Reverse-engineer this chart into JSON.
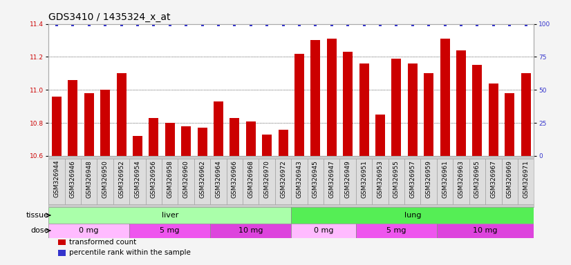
{
  "title": "GDS3410 / 1435324_x_at",
  "samples": [
    "GSM326944",
    "GSM326946",
    "GSM326948",
    "GSM326950",
    "GSM326952",
    "GSM326954",
    "GSM326956",
    "GSM326958",
    "GSM326960",
    "GSM326962",
    "GSM326964",
    "GSM326966",
    "GSM326968",
    "GSM326970",
    "GSM326972",
    "GSM326943",
    "GSM326945",
    "GSM326947",
    "GSM326949",
    "GSM326951",
    "GSM326953",
    "GSM326955",
    "GSM326957",
    "GSM326959",
    "GSM326961",
    "GSM326963",
    "GSM326965",
    "GSM326967",
    "GSM326969",
    "GSM326971"
  ],
  "values": [
    10.96,
    11.06,
    10.98,
    11.0,
    11.1,
    10.72,
    10.83,
    10.8,
    10.78,
    10.77,
    10.93,
    10.83,
    10.81,
    10.73,
    10.76,
    11.22,
    11.3,
    11.31,
    11.23,
    11.16,
    10.85,
    11.19,
    11.16,
    11.1,
    11.31,
    11.24,
    11.15,
    11.04,
    10.98,
    11.1
  ],
  "percentile_values": [
    99,
    99,
    99,
    99,
    99,
    99,
    99,
    99,
    99,
    99,
    99,
    99,
    99,
    99,
    99,
    99,
    99,
    99,
    99,
    99,
    99,
    99,
    99,
    99,
    99,
    99,
    99,
    99,
    99,
    99
  ],
  "bar_color": "#cc0000",
  "dot_color": "#3333cc",
  "ylim_left": [
    10.6,
    11.4
  ],
  "ylim_right": [
    0,
    100
  ],
  "yticks_left": [
    10.6,
    10.8,
    11.0,
    11.2,
    11.4
  ],
  "yticks_right": [
    0,
    25,
    50,
    75,
    100
  ],
  "tissue_groups": [
    {
      "label": "liver",
      "start": 0,
      "end": 15,
      "color": "#aaffaa"
    },
    {
      "label": "lung",
      "start": 15,
      "end": 30,
      "color": "#55ee55"
    }
  ],
  "dose_groups": [
    {
      "label": "0 mg",
      "start": 0,
      "end": 5,
      "color": "#ffbbff"
    },
    {
      "label": "5 mg",
      "start": 5,
      "end": 10,
      "color": "#ee55ee"
    },
    {
      "label": "10 mg",
      "start": 10,
      "end": 15,
      "color": "#dd44dd"
    },
    {
      "label": "0 mg",
      "start": 15,
      "end": 19,
      "color": "#ffbbff"
    },
    {
      "label": "5 mg",
      "start": 19,
      "end": 24,
      "color": "#ee55ee"
    },
    {
      "label": "10 mg",
      "start": 24,
      "end": 30,
      "color": "#dd44dd"
    }
  ],
  "legend_items": [
    {
      "label": "transformed count",
      "color": "#cc0000"
    },
    {
      "label": "percentile rank within the sample",
      "color": "#3333cc"
    }
  ],
  "chart_bg": "#ffffff",
  "tick_area_bg": "#cccccc",
  "grid_color": "#000000",
  "title_fontsize": 10,
  "tick_fontsize": 6.5,
  "label_fontsize": 8,
  "anno_fontsize": 8
}
